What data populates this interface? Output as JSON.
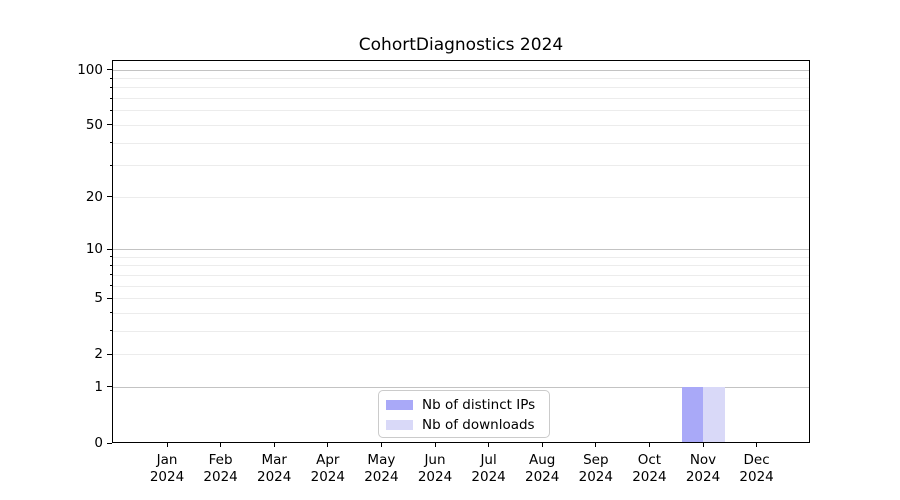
{
  "title": "CohortDiagnostics 2024",
  "legend": {
    "items": [
      {
        "label": "Nb of distinct IPs",
        "color": "#a9a9f8"
      },
      {
        "label": "Nb of downloads",
        "color": "#d9d9f8"
      }
    ]
  },
  "axes": {
    "x_tick_months": [
      "Jan",
      "Feb",
      "Mar",
      "Apr",
      "May",
      "Jun",
      "Jul",
      "Aug",
      "Sep",
      "Oct",
      "Nov",
      "Dec"
    ],
    "x_tick_year": "2024",
    "y_tick_labels": [
      "100",
      "50",
      "20",
      "10",
      "5",
      "2",
      "1",
      "0"
    ]
  },
  "chart_data": {
    "type": "bar",
    "title": "CohortDiagnostics 2024",
    "categories": [
      "Jan 2024",
      "Feb 2024",
      "Mar 2024",
      "Apr 2024",
      "May 2024",
      "Jun 2024",
      "Jul 2024",
      "Aug 2024",
      "Sep 2024",
      "Oct 2024",
      "Nov 2024",
      "Dec 2024"
    ],
    "series": [
      {
        "name": "Nb of distinct IPs",
        "color": "#a9a9f8",
        "values": [
          0,
          0,
          0,
          0,
          0,
          0,
          0,
          0,
          0,
          0,
          1,
          0
        ]
      },
      {
        "name": "Nb of downloads",
        "color": "#d9d9f8",
        "values": [
          0,
          0,
          0,
          0,
          0,
          0,
          0,
          0,
          0,
          0,
          1,
          0
        ]
      }
    ],
    "xlabel": "",
    "ylabel": "",
    "yscale": "log1p",
    "yticks": [
      100,
      50,
      20,
      10,
      5,
      2,
      1,
      0
    ],
    "ylim": [
      0,
      112
    ],
    "grid": "horizontal",
    "grid_major_values": [
      1,
      10,
      100
    ],
    "grid_minor_values": [
      2,
      3,
      4,
      5,
      6,
      7,
      8,
      9,
      20,
      30,
      40,
      50,
      60,
      70,
      80,
      90
    ],
    "legend_position": "lower center",
    "colors": {
      "major_grid": "#c3c3c3",
      "minor_grid": "#ececec",
      "axis": "#000000"
    }
  }
}
